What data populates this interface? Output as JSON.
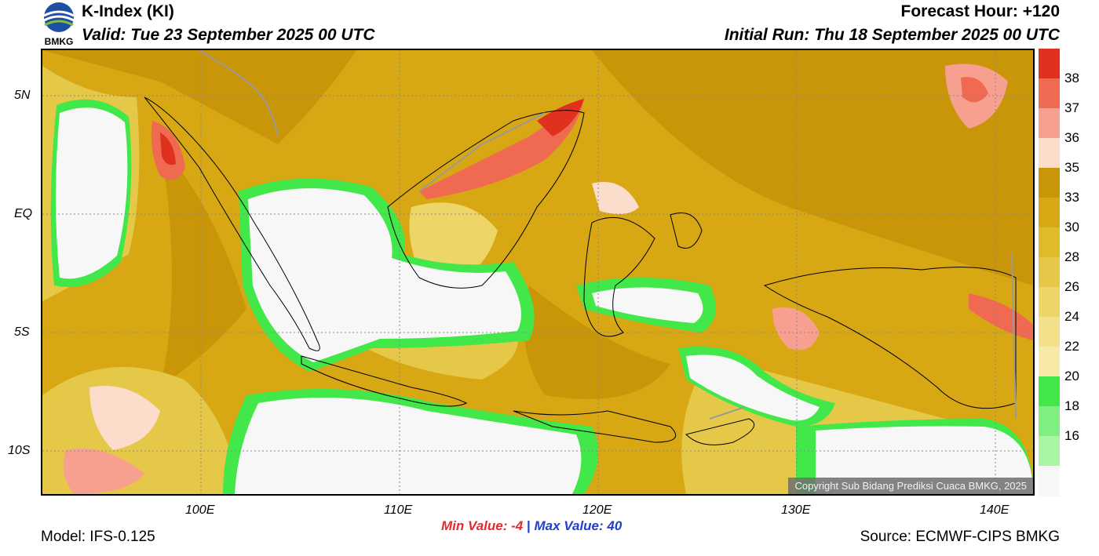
{
  "header": {
    "title": "K-Index (KI)",
    "valid": "Valid: Tue 23 September 2025 00 UTC",
    "forecast_hour": "Forecast Hour: +120",
    "initial_run": "Initial Run: Thu 18 September 2025 00 UTC",
    "logo_text": "BMKG"
  },
  "map": {
    "lat_labels": [
      "5N",
      "EQ",
      "5S",
      "10S"
    ],
    "lon_labels": [
      "100E",
      "110E",
      "120E",
      "130E",
      "140E"
    ],
    "copyright": "Copyright Sub Bidang Prediksi Cuaca BMKG, 2025"
  },
  "colorbar": {
    "labels": [
      "38",
      "37",
      "36",
      "35",
      "33",
      "30",
      "28",
      "26",
      "24",
      "22",
      "20",
      "18",
      "16"
    ],
    "colors": [
      "#e0301e",
      "#ef6a50",
      "#f7a090",
      "#fcdcca",
      "#c9960a",
      "#d7a813",
      "#dfba2a",
      "#e6c848",
      "#edd568",
      "#f3e08a",
      "#f7eaa6",
      "#42e84a",
      "#7ff07f",
      "#a9f5a4",
      "#f7f7f7"
    ]
  },
  "stats": {
    "min_label": "Min Value:",
    "min_value": "-4",
    "separator": "|",
    "max_label": "Max Value:",
    "max_value": "40"
  },
  "footer": {
    "model": "Model: IFS-0.125",
    "source": "Source: ECMWF-CIPS BMKG"
  }
}
